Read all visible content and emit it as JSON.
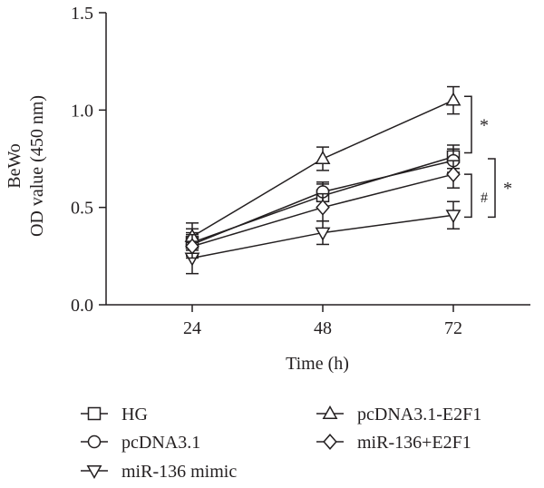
{
  "chart_data": {
    "type": "line",
    "ylabel_lines": [
      "BeWo",
      "OD value (450 nm)"
    ],
    "xlabel": "Time (h)",
    "categories": [
      "24",
      "48",
      "72"
    ],
    "ylim": [
      0,
      1.5
    ],
    "yticks": [
      "0.0",
      "0.5",
      "1.0",
      "1.5"
    ],
    "series": [
      {
        "name": "HG",
        "marker": "square",
        "values": [
          0.32,
          0.56,
          0.76
        ],
        "errors": [
          0.07,
          0.06,
          0.06
        ]
      },
      {
        "name": "pcDNA3.1",
        "marker": "circle",
        "values": [
          0.31,
          0.58,
          0.74
        ],
        "errors": [
          0.06,
          0.05,
          0.06
        ]
      },
      {
        "name": "miR-136 mimic",
        "marker": "triangle-down",
        "values": [
          0.24,
          0.37,
          0.46
        ],
        "errors": [
          0.08,
          0.06,
          0.07
        ]
      },
      {
        "name": "pcDNA3.1-E2F1",
        "marker": "triangle-up",
        "values": [
          0.35,
          0.75,
          1.05
        ],
        "errors": [
          0.07,
          0.06,
          0.07
        ]
      },
      {
        "name": "miR-136+E2F1",
        "marker": "diamond",
        "values": [
          0.3,
          0.5,
          0.67
        ],
        "errors": [
          0.06,
          0.07,
          0.07
        ]
      }
    ],
    "significance": [
      {
        "label": "*",
        "from": 0.78,
        "to": 1.07
      },
      {
        "label": "#",
        "from": 0.45,
        "to": 0.67
      },
      {
        "label": "*",
        "from": 0.45,
        "to": 0.75
      }
    ],
    "legend_placement": "bottom"
  }
}
